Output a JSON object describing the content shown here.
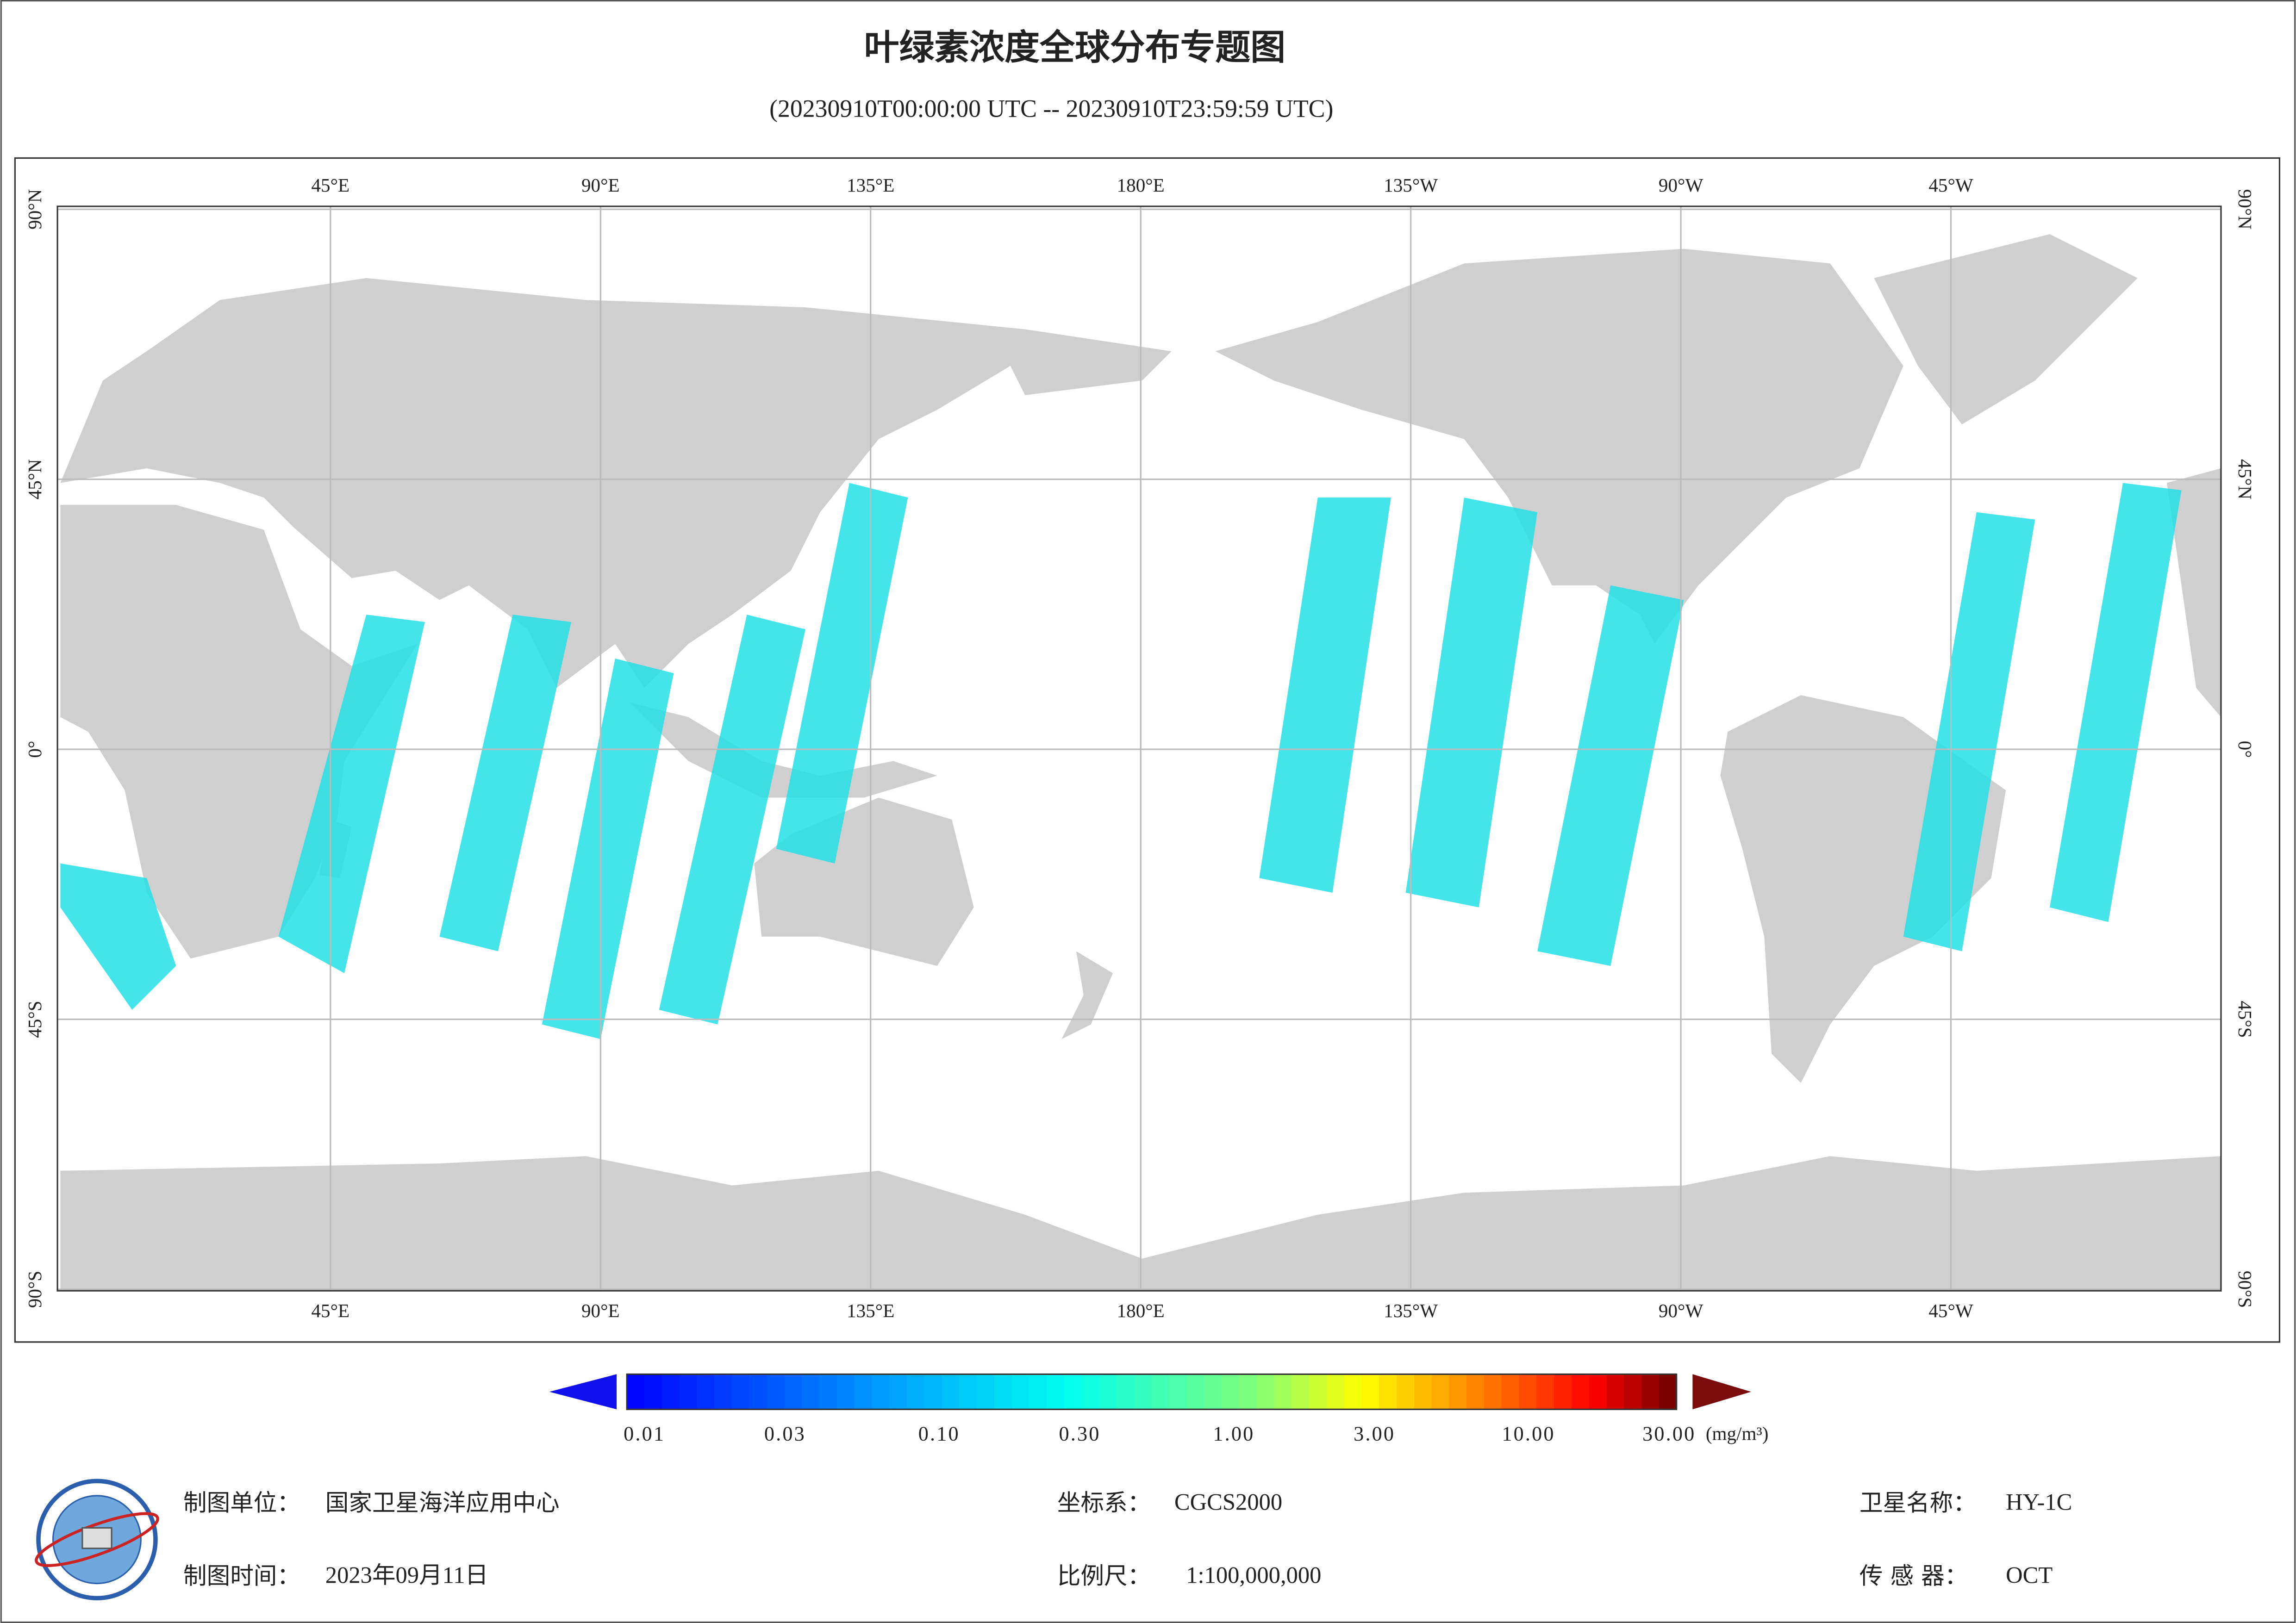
{
  "header": {
    "title": "叶绿素浓度全球分布专题图",
    "subtitle": "(20230910T00:00:00 UTC -- 20230910T23:59:59 UTC)"
  },
  "map": {
    "lon_range": [
      0,
      360
    ],
    "lat_range": [
      -90,
      90
    ],
    "lon_ticks": [
      {
        "value": 45,
        "label": "45°E"
      },
      {
        "value": 90,
        "label": "90°E"
      },
      {
        "value": 135,
        "label": "135°E"
      },
      {
        "value": 180,
        "label": "180°E"
      },
      {
        "value": 225,
        "label": "135°W"
      },
      {
        "value": 270,
        "label": "90°W"
      },
      {
        "value": 315,
        "label": "45°W"
      }
    ],
    "lat_ticks": [
      {
        "value": 90,
        "label": "90°N"
      },
      {
        "value": 45,
        "label": "45°N"
      },
      {
        "value": 0,
        "label": "0°"
      },
      {
        "value": -45,
        "label": "45°S"
      },
      {
        "value": -90,
        "label": "90°S"
      }
    ]
  },
  "colorbar": {
    "range": [
      0.01,
      30
    ],
    "log": true,
    "unit": "(mg/m³)",
    "ticks": [
      {
        "value": 0.01,
        "label": "0.01"
      },
      {
        "value": 0.03,
        "label": "0.03"
      },
      {
        "value": 0.1,
        "label": "0.10"
      },
      {
        "value": 0.3,
        "label": "0.30"
      },
      {
        "value": 1,
        "label": "1.00"
      },
      {
        "value": 3,
        "label": "3.00"
      },
      {
        "value": 10,
        "label": "10.00"
      },
      {
        "value": 30,
        "label": "30.00"
      }
    ]
  },
  "footer": {
    "items": [
      {
        "label": "制图单位：",
        "value": "国家卫星海洋应用中心"
      },
      {
        "label": "坐标系：",
        "value": "CGCS2000"
      },
      {
        "label": "卫星名称：",
        "value": "HY-1C"
      },
      {
        "label": "制图时间：",
        "value": "2023年09月11日"
      },
      {
        "label": "比例尺：",
        "value": "1:100,000,000"
      },
      {
        "label": "传 感 器：",
        "value": "OCT"
      }
    ]
  }
}
